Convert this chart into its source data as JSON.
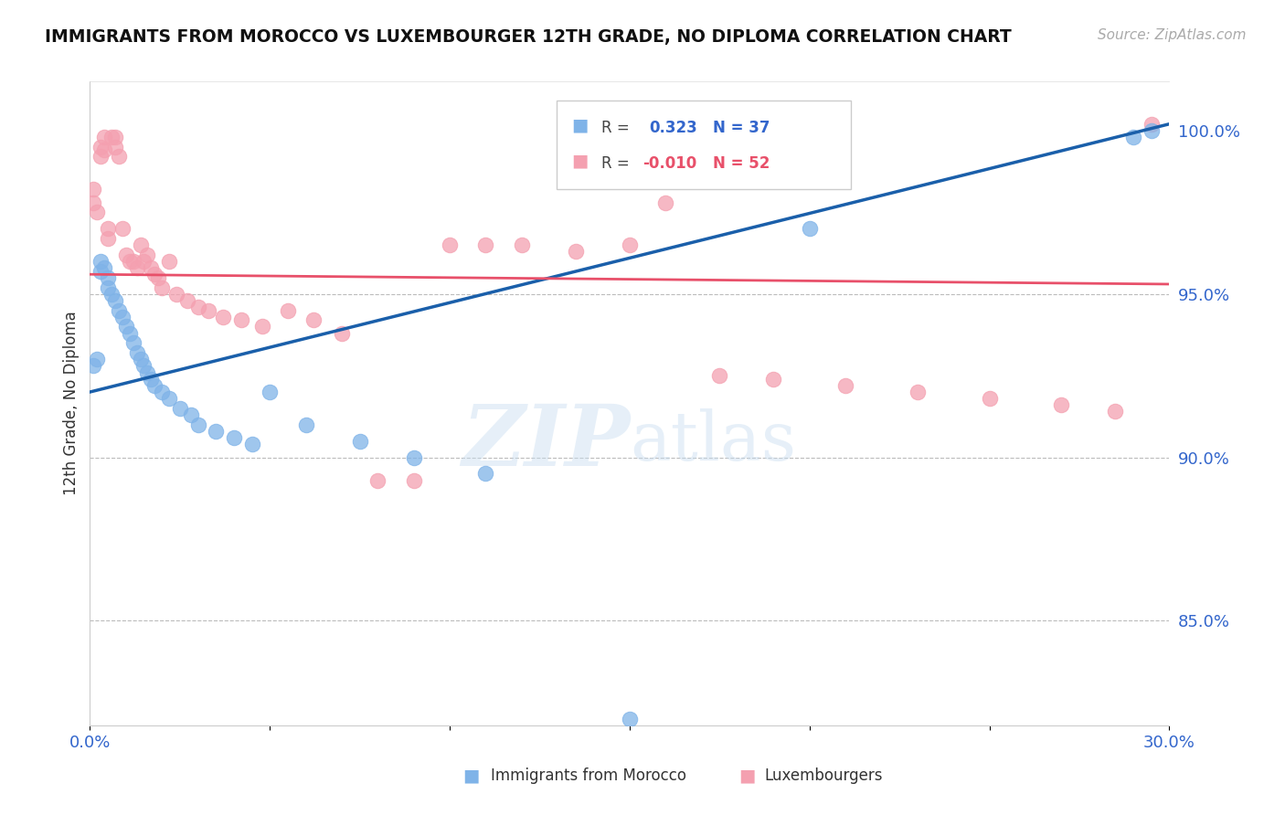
{
  "title": "IMMIGRANTS FROM MOROCCO VS LUXEMBOURGER 12TH GRADE, NO DIPLOMA CORRELATION CHART",
  "source": "Source: ZipAtlas.com",
  "ylabel": "12th Grade, No Diploma",
  "xlim": [
    0.0,
    0.3
  ],
  "ylim": [
    0.818,
    1.015
  ],
  "yticks": [
    0.85,
    0.9,
    0.95,
    1.0
  ],
  "ytick_labels": [
    "85.0%",
    "90.0%",
    "95.0%",
    "100.0%"
  ],
  "xticks": [
    0.0,
    0.05,
    0.1,
    0.15,
    0.2,
    0.25,
    0.3
  ],
  "xtick_labels": [
    "0.0%",
    "",
    "",
    "",
    "",
    "",
    "30.0%"
  ],
  "R_blue": 0.323,
  "N_blue": 37,
  "R_pink": -0.01,
  "N_pink": 52,
  "blue_color": "#7fb3e8",
  "pink_color": "#f4a0b0",
  "blue_line_color": "#1a5faa",
  "pink_line_color": "#e8506a",
  "blue_line_x0": 0.0,
  "blue_line_y0": 0.92,
  "blue_line_x1": 0.3,
  "blue_line_y1": 1.002,
  "pink_line_x0": 0.0,
  "pink_line_y0": 0.956,
  "pink_line_x1": 0.3,
  "pink_line_y1": 0.953,
  "blue_scatter_x": [
    0.001,
    0.002,
    0.003,
    0.003,
    0.004,
    0.005,
    0.005,
    0.006,
    0.007,
    0.008,
    0.009,
    0.01,
    0.011,
    0.012,
    0.013,
    0.014,
    0.015,
    0.016,
    0.017,
    0.018,
    0.02,
    0.022,
    0.025,
    0.028,
    0.03,
    0.035,
    0.04,
    0.045,
    0.05,
    0.06,
    0.075,
    0.09,
    0.11,
    0.15,
    0.2,
    0.29,
    0.295
  ],
  "blue_scatter_y": [
    0.928,
    0.93,
    0.96,
    0.957,
    0.958,
    0.955,
    0.952,
    0.95,
    0.948,
    0.945,
    0.943,
    0.94,
    0.938,
    0.935,
    0.932,
    0.93,
    0.928,
    0.926,
    0.924,
    0.922,
    0.92,
    0.918,
    0.915,
    0.913,
    0.91,
    0.908,
    0.906,
    0.904,
    0.92,
    0.91,
    0.905,
    0.9,
    0.895,
    0.82,
    0.97,
    0.998,
    1.0
  ],
  "pink_scatter_x": [
    0.001,
    0.001,
    0.002,
    0.003,
    0.003,
    0.004,
    0.004,
    0.005,
    0.005,
    0.006,
    0.007,
    0.007,
    0.008,
    0.009,
    0.01,
    0.011,
    0.012,
    0.013,
    0.014,
    0.015,
    0.016,
    0.017,
    0.018,
    0.019,
    0.02,
    0.022,
    0.024,
    0.027,
    0.03,
    0.033,
    0.037,
    0.042,
    0.048,
    0.055,
    0.062,
    0.07,
    0.08,
    0.09,
    0.1,
    0.11,
    0.12,
    0.135,
    0.15,
    0.16,
    0.175,
    0.19,
    0.21,
    0.23,
    0.25,
    0.27,
    0.285,
    0.295
  ],
  "pink_scatter_y": [
    0.982,
    0.978,
    0.975,
    0.995,
    0.992,
    0.998,
    0.994,
    0.97,
    0.967,
    0.998,
    0.998,
    0.995,
    0.992,
    0.97,
    0.962,
    0.96,
    0.96,
    0.958,
    0.965,
    0.96,
    0.962,
    0.958,
    0.956,
    0.955,
    0.952,
    0.96,
    0.95,
    0.948,
    0.946,
    0.945,
    0.943,
    0.942,
    0.94,
    0.945,
    0.942,
    0.938,
    0.893,
    0.893,
    0.965,
    0.965,
    0.965,
    0.963,
    0.965,
    0.978,
    0.925,
    0.924,
    0.922,
    0.92,
    0.918,
    0.916,
    0.914,
    1.002
  ],
  "watermark_zip": "ZIP",
  "watermark_atlas": "atlas",
  "background_color": "#ffffff"
}
